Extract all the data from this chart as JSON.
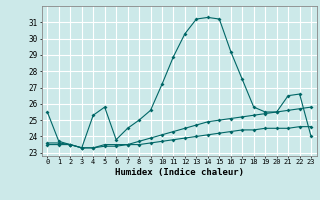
{
  "title": "",
  "xlabel": "Humidex (Indice chaleur)",
  "background_color": "#cce9e9",
  "grid_color": "#ffffff",
  "line_color": "#006666",
  "xlim": [
    -0.5,
    23.5
  ],
  "ylim": [
    22.8,
    32.0
  ],
  "yticks": [
    23,
    24,
    25,
    26,
    27,
    28,
    29,
    30,
    31
  ],
  "xticks": [
    0,
    1,
    2,
    3,
    4,
    5,
    6,
    7,
    8,
    9,
    10,
    11,
    12,
    13,
    14,
    15,
    16,
    17,
    18,
    19,
    20,
    21,
    22,
    23
  ],
  "line1_x": [
    0,
    1,
    2,
    3,
    4,
    5,
    6,
    7,
    8,
    9,
    10,
    11,
    12,
    13,
    14,
    15,
    16,
    17,
    18,
    19,
    20,
    21,
    22,
    23
  ],
  "line1_y": [
    25.5,
    23.7,
    23.5,
    23.3,
    25.3,
    25.8,
    23.8,
    24.5,
    25.0,
    25.6,
    27.2,
    28.9,
    30.3,
    31.2,
    31.3,
    31.2,
    29.2,
    27.5,
    25.8,
    25.5,
    25.5,
    26.5,
    26.6,
    24.0
  ],
  "line2_x": [
    0,
    1,
    2,
    3,
    4,
    5,
    6,
    7,
    8,
    9,
    10,
    11,
    12,
    13,
    14,
    15,
    16,
    17,
    18,
    19,
    20,
    21,
    22,
    23
  ],
  "line2_y": [
    23.6,
    23.6,
    23.5,
    23.3,
    23.3,
    23.5,
    23.5,
    23.5,
    23.7,
    23.9,
    24.1,
    24.3,
    24.5,
    24.7,
    24.9,
    25.0,
    25.1,
    25.2,
    25.3,
    25.4,
    25.5,
    25.6,
    25.7,
    25.8
  ],
  "line3_x": [
    0,
    1,
    2,
    3,
    4,
    5,
    6,
    7,
    8,
    9,
    10,
    11,
    12,
    13,
    14,
    15,
    16,
    17,
    18,
    19,
    20,
    21,
    22,
    23
  ],
  "line3_y": [
    23.5,
    23.5,
    23.5,
    23.3,
    23.3,
    23.4,
    23.4,
    23.5,
    23.5,
    23.6,
    23.7,
    23.8,
    23.9,
    24.0,
    24.1,
    24.2,
    24.3,
    24.4,
    24.4,
    24.5,
    24.5,
    24.5,
    24.6,
    24.6
  ]
}
